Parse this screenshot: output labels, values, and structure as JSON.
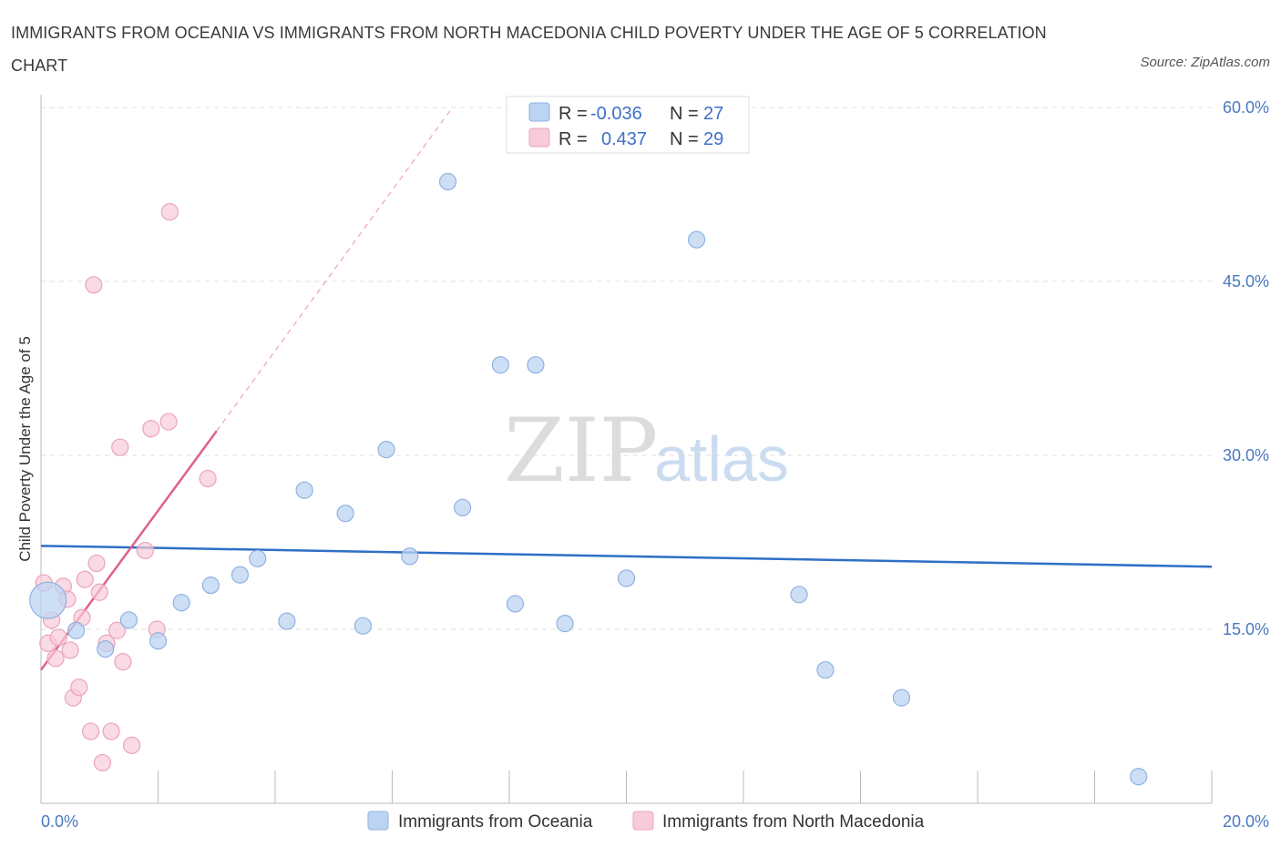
{
  "header": {
    "title": "IMMIGRANTS FROM OCEANIA VS IMMIGRANTS FROM NORTH MACEDONIA CHILD POVERTY UNDER THE AGE OF 5 CORRELATION CHART",
    "source": "Source: ZipAtlas.com"
  },
  "watermark": {
    "zip": "ZIP",
    "atlas": "atlas"
  },
  "colors": {
    "oceania_fill": "#bcd4f2",
    "oceania_stroke": "#8fb2e0",
    "oceania_line": "#2f6fc6",
    "macedonia_fill": "#f8cbd8",
    "macedonia_stroke": "#eba4ba",
    "macedonia_line": "#e0608a",
    "grid": "#dddddd",
    "axis": "#bbbbbb",
    "tick_text": "#4a78c2"
  },
  "legend_top": {
    "rows": [
      {
        "r_label": "R =",
        "r_value": "-0.036",
        "n_label": "N =",
        "n_value": "27"
      },
      {
        "r_label": "R =",
        "r_value": "0.437",
        "n_label": "N =",
        "n_value": "29"
      }
    ]
  },
  "chart_data": {
    "type": "scatter",
    "title": "IMMIGRANTS FROM OCEANIA VS IMMIGRANTS FROM NORTH MACEDONIA CHILD POVERTY UNDER THE AGE OF 5 CORRELATION CHART",
    "xlabel": "",
    "ylabel": "Child Poverty Under the Age of 5",
    "xlim": [
      0,
      20
    ],
    "ylim": [
      0,
      60
    ],
    "x_tick_labels": [
      "0.0%",
      "20.0%"
    ],
    "y_ticks": [
      15,
      30,
      45,
      60
    ],
    "y_tick_labels": [
      "15.0%",
      "30.0%",
      "45.0%",
      "60.0%"
    ],
    "grid": true,
    "legend_position": "top-center",
    "series": [
      {
        "name": "Immigrants from Oceania",
        "r": -0.036,
        "n": 27,
        "trend": {
          "x": [
            0,
            20
          ],
          "y": [
            22.2,
            20.4
          ],
          "style": "solid"
        },
        "points": [
          {
            "x": 0.12,
            "y": 17.5,
            "big": true
          },
          {
            "x": 0.6,
            "y": 14.9
          },
          {
            "x": 1.1,
            "y": 13.3
          },
          {
            "x": 1.5,
            "y": 15.8
          },
          {
            "x": 2.0,
            "y": 14.0
          },
          {
            "x": 2.4,
            "y": 17.3
          },
          {
            "x": 2.9,
            "y": 18.8
          },
          {
            "x": 3.4,
            "y": 19.7
          },
          {
            "x": 3.7,
            "y": 21.1
          },
          {
            "x": 4.2,
            "y": 15.7
          },
          {
            "x": 4.5,
            "y": 27.0
          },
          {
            "x": 5.2,
            "y": 25.0
          },
          {
            "x": 5.5,
            "y": 15.3
          },
          {
            "x": 5.9,
            "y": 30.5
          },
          {
            "x": 6.3,
            "y": 21.3
          },
          {
            "x": 6.95,
            "y": 53.6
          },
          {
            "x": 7.2,
            "y": 25.5
          },
          {
            "x": 7.85,
            "y": 37.8
          },
          {
            "x": 8.1,
            "y": 17.2
          },
          {
            "x": 8.45,
            "y": 37.8
          },
          {
            "x": 8.95,
            "y": 15.5
          },
          {
            "x": 10.0,
            "y": 19.4
          },
          {
            "x": 11.2,
            "y": 48.6
          },
          {
            "x": 12.95,
            "y": 18.0
          },
          {
            "x": 13.4,
            "y": 11.5
          },
          {
            "x": 14.7,
            "y": 9.1
          },
          {
            "x": 18.75,
            "y": 2.3
          }
        ]
      },
      {
        "name": "Immigrants from North Macedonia",
        "r": 0.437,
        "n": 29,
        "trend": {
          "x": [
            0,
            3.0
          ],
          "y": [
            11.5,
            32.1
          ],
          "style": "solid",
          "extension": {
            "x": [
              3.0,
              7.0
            ],
            "y": [
              32.1,
              59.8
            ],
            "style": "dashed"
          }
        },
        "points": [
          {
            "x": 0.05,
            "y": 19.0
          },
          {
            "x": 0.12,
            "y": 13.8
          },
          {
            "x": 0.18,
            "y": 15.8
          },
          {
            "x": 0.25,
            "y": 12.5
          },
          {
            "x": 0.3,
            "y": 14.3
          },
          {
            "x": 0.38,
            "y": 18.7
          },
          {
            "x": 0.45,
            "y": 17.6
          },
          {
            "x": 0.5,
            "y": 13.2
          },
          {
            "x": 0.55,
            "y": 9.1
          },
          {
            "x": 0.65,
            "y": 10.0
          },
          {
            "x": 0.7,
            "y": 16.0
          },
          {
            "x": 0.75,
            "y": 19.3
          },
          {
            "x": 0.85,
            "y": 6.2
          },
          {
            "x": 0.9,
            "y": 44.7
          },
          {
            "x": 0.95,
            "y": 20.7
          },
          {
            "x": 1.0,
            "y": 18.2
          },
          {
            "x": 1.05,
            "y": 3.5
          },
          {
            "x": 1.12,
            "y": 13.8
          },
          {
            "x": 1.2,
            "y": 6.2
          },
          {
            "x": 1.3,
            "y": 14.9
          },
          {
            "x": 1.35,
            "y": 30.7
          },
          {
            "x": 1.4,
            "y": 12.2
          },
          {
            "x": 1.55,
            "y": 5.0
          },
          {
            "x": 1.78,
            "y": 21.8
          },
          {
            "x": 1.88,
            "y": 32.3
          },
          {
            "x": 1.98,
            "y": 15.0
          },
          {
            "x": 2.18,
            "y": 32.9
          },
          {
            "x": 2.2,
            "y": 51.0
          },
          {
            "x": 2.85,
            "y": 28.0
          }
        ]
      }
    ]
  }
}
